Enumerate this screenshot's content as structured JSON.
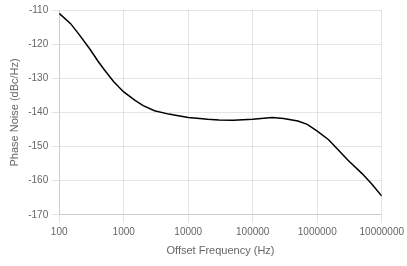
{
  "chart_data": {
    "type": "line",
    "x": [
      100,
      150,
      200,
      300,
      400,
      500,
      700,
      1000,
      1500,
      2000,
      3000,
      5000,
      7000,
      10000,
      15000,
      20000,
      30000,
      50000,
      100000,
      200000,
      300000,
      500000,
      700000,
      1000000,
      1500000,
      2000000,
      3000000,
      5000000,
      7000000,
      10000000
    ],
    "series": [
      {
        "color": "#000000",
        "values": [
          -111,
          -114,
          -117,
          -121.5,
          -125,
          -127.5,
          -131,
          -134,
          -136.5,
          -138,
          -139.5,
          -140.5,
          -141,
          -141.5,
          -141.8,
          -142,
          -142.2,
          -142.3,
          -142,
          -141.5,
          -141.8,
          -142.5,
          -143.5,
          -145.5,
          -148,
          -150.5,
          -154,
          -158,
          -161,
          -164.5
        ]
      }
    ],
    "xlabel": "Offset Frequency (Hz)",
    "ylabel": "Phase Noise (dBc/Hz)",
    "xlim": [
      100,
      10000000
    ],
    "ylim": [
      -170,
      -110
    ],
    "xticks": [
      100,
      1000,
      10000,
      100000,
      1000000,
      10000000
    ],
    "yticks": [
      -170,
      -160,
      -150,
      -140,
      -130,
      -120,
      -110
    ],
    "log": "x",
    "grid": true
  }
}
